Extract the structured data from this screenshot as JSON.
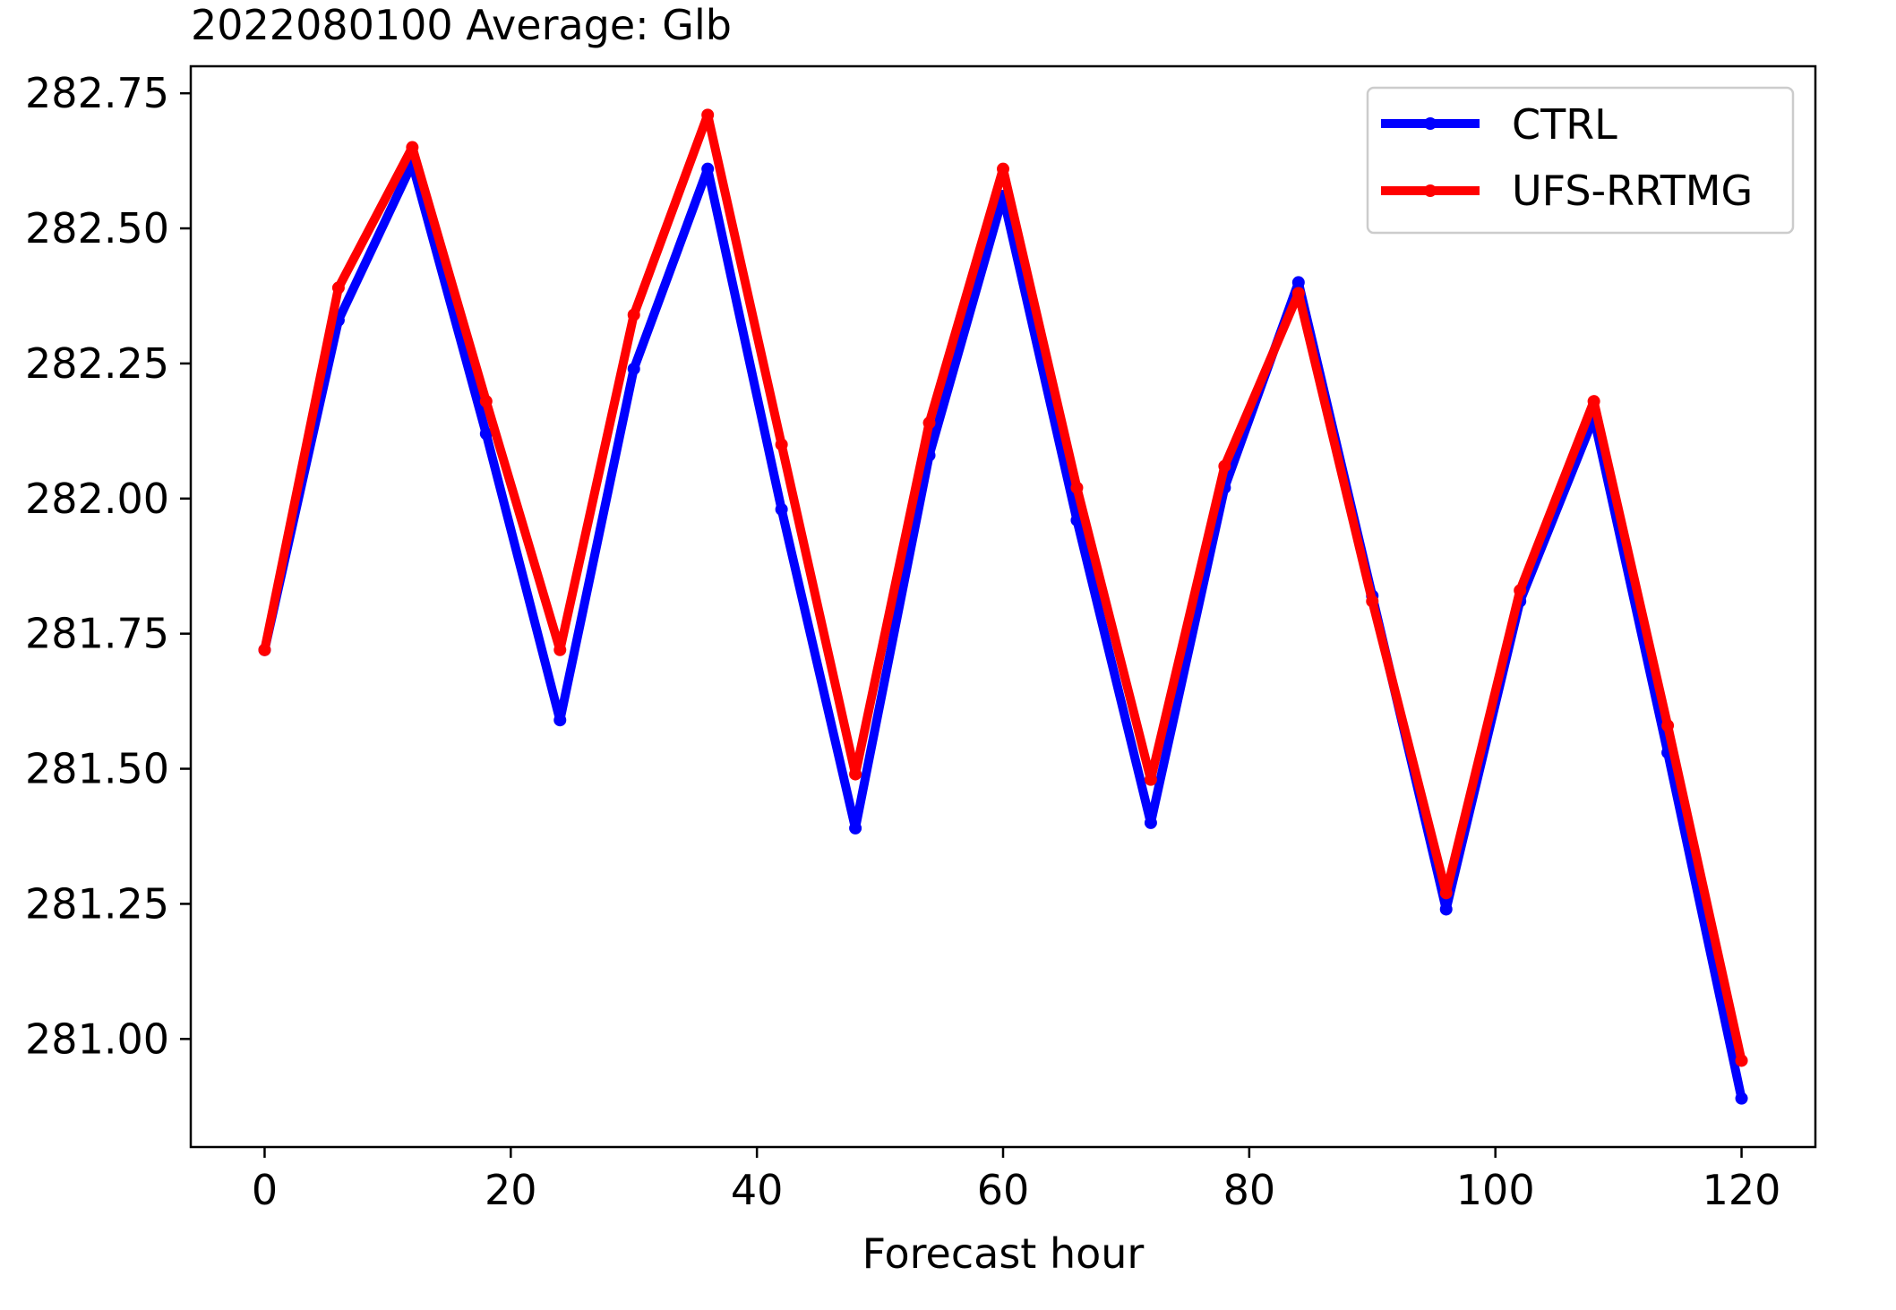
{
  "chart_data": {
    "type": "line",
    "title": "2022080100 Average: Glb",
    "xlabel": "Forecast hour",
    "ylabel": "",
    "x": [
      0,
      6,
      12,
      18,
      24,
      30,
      36,
      42,
      48,
      54,
      60,
      66,
      72,
      78,
      84,
      90,
      96,
      102,
      108,
      114,
      120
    ],
    "xlim": [
      -6,
      126
    ],
    "ylim": [
      280.8,
      282.8
    ],
    "xticks": [
      0,
      20,
      40,
      60,
      80,
      100,
      120
    ],
    "xtick_labels": [
      "0",
      "20",
      "40",
      "60",
      "80",
      "100",
      "120"
    ],
    "yticks": [
      281.0,
      281.25,
      281.5,
      281.75,
      282.0,
      282.25,
      282.5,
      282.75
    ],
    "ytick_labels": [
      "281.00",
      "281.25",
      "281.50",
      "281.75",
      "282.00",
      "282.25",
      "282.50",
      "282.75"
    ],
    "grid": false,
    "legend_position": "top-right",
    "series": [
      {
        "name": "CTRL",
        "color": "#0000ff",
        "values": [
          281.72,
          282.33,
          282.62,
          282.12,
          281.59,
          282.24,
          282.61,
          281.98,
          281.39,
          282.08,
          282.56,
          281.96,
          281.4,
          282.02,
          282.4,
          281.82,
          281.24,
          281.81,
          282.15,
          281.53,
          280.89
        ]
      },
      {
        "name": "UFS-RRTMG",
        "color": "#ff0000",
        "values": [
          281.72,
          282.39,
          282.65,
          282.18,
          281.72,
          282.34,
          282.71,
          282.1,
          281.49,
          282.14,
          282.61,
          282.02,
          281.48,
          282.06,
          282.38,
          281.81,
          281.27,
          281.83,
          282.18,
          281.58,
          280.96
        ]
      }
    ]
  }
}
